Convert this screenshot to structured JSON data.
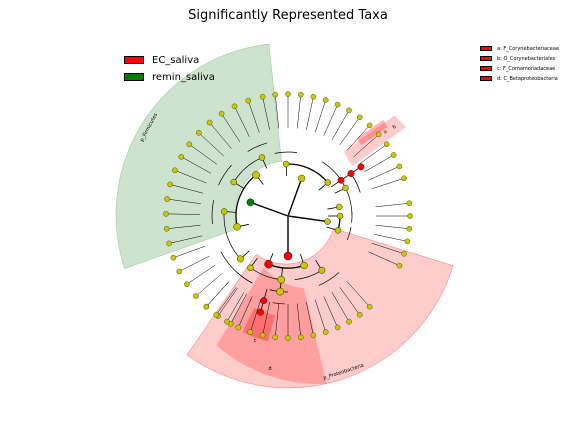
{
  "title": "Significantly Represented Taxa",
  "legend": [
    {
      "label": "EC_saliva",
      "color": "#ff0000"
    },
    {
      "label": "remin_saliva",
      "color": "#008000"
    }
  ],
  "taxa_legend": [
    {
      "label": "a: F_Corynebacteriaceae",
      "color": "#ff0000"
    },
    {
      "label": "b: O_Corynebacteriales",
      "color": "#ff0000"
    },
    {
      "label": "c: F_Comamonadaceae",
      "color": "#ff0000"
    },
    {
      "label": "d: C_Betaproteobacteria",
      "color": "#ff0000"
    }
  ],
  "clade_labels": {
    "firmicutes": "p_Firmicutes",
    "proteobacteria": "p_Proteobacteria",
    "d": "d",
    "c": "c",
    "b": "b",
    "a": "a"
  },
  "colors": {
    "enriched_ec": "#ff0000",
    "enriched_remin": "#008000",
    "non_significant": "#c8c800"
  }
}
